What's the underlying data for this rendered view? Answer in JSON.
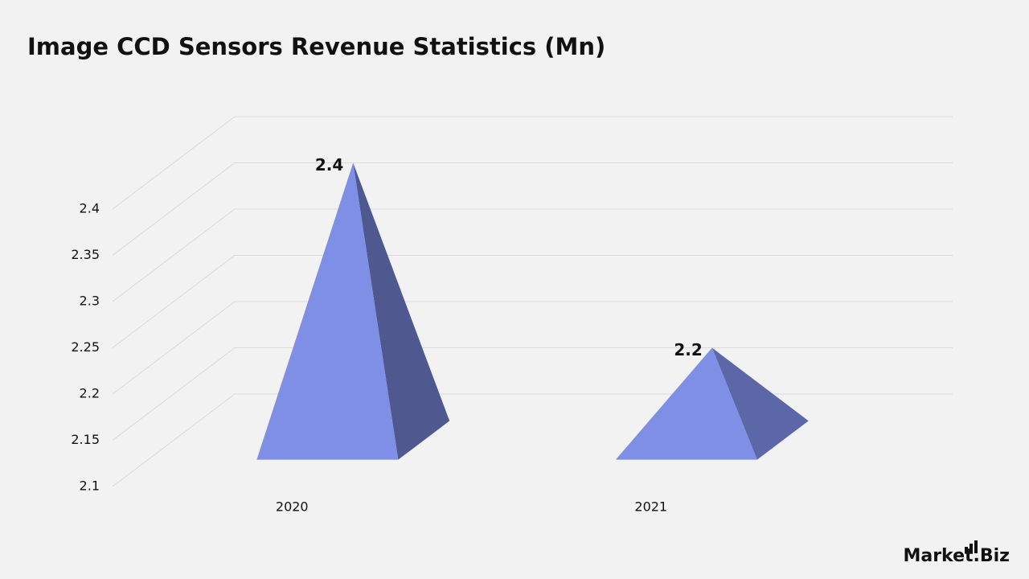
{
  "chart_data": {
    "type": "pyramid3d",
    "title": "Image CCD Sensors Revenue Statistics (Mn)",
    "categories": [
      "2020",
      "2021"
    ],
    "values": [
      2.4,
      2.2
    ],
    "color": "#7f8fe6",
    "ylim": [
      2.1,
      2.4
    ],
    "yticks": [
      2.1,
      2.15,
      2.2,
      2.25,
      2.3,
      2.35,
      2.4
    ],
    "grid": true
  },
  "brand": "Market.Biz"
}
